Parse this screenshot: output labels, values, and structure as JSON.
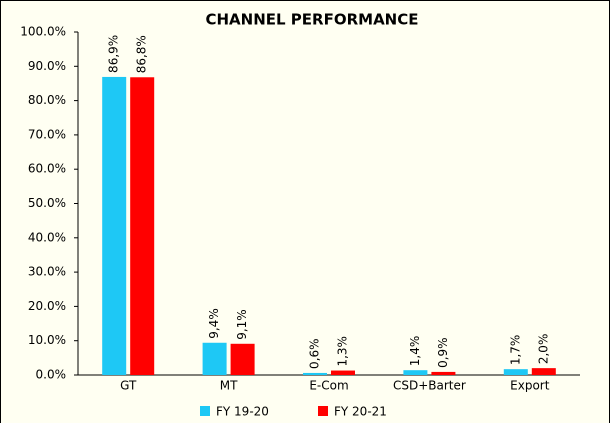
{
  "chart_data": {
    "type": "bar",
    "title": "CHANNEL PERFORMANCE",
    "categories": [
      "GT",
      "MT",
      "E-Com",
      "CSD+Barter",
      "Export"
    ],
    "series": [
      {
        "name": "FY 19-20",
        "color": "#1ec8f5",
        "values": [
          86.9,
          9.4,
          0.6,
          1.4,
          1.7
        ],
        "value_labels": [
          "86,9%",
          "9,4%",
          "0,6%",
          "1,4%",
          "1,7%"
        ]
      },
      {
        "name": "FY 20-21",
        "color": "#ff0000",
        "values": [
          86.8,
          9.1,
          1.3,
          0.9,
          2.0
        ],
        "value_labels": [
          "86,8%",
          "9,1%",
          "1,3%",
          "0,9%",
          "2,0%"
        ]
      }
    ],
    "ylim": [
      0,
      100
    ],
    "yticks": [
      {
        "value": 0,
        "label": "0.0%"
      },
      {
        "value": 10,
        "label": "10.0%"
      },
      {
        "value": 20,
        "label": "20.0%"
      },
      {
        "value": 30,
        "label": "30.0%"
      },
      {
        "value": 40,
        "label": "40.0%"
      },
      {
        "value": 50,
        "label": "50.0%"
      },
      {
        "value": 60,
        "label": "60.0%"
      },
      {
        "value": 70,
        "label": "70.0%"
      },
      {
        "value": 80,
        "label": "80.0%"
      },
      {
        "value": 90,
        "label": "90.0%"
      },
      {
        "value": 100,
        "label": "100.0%"
      }
    ],
    "legend": "bottom"
  }
}
